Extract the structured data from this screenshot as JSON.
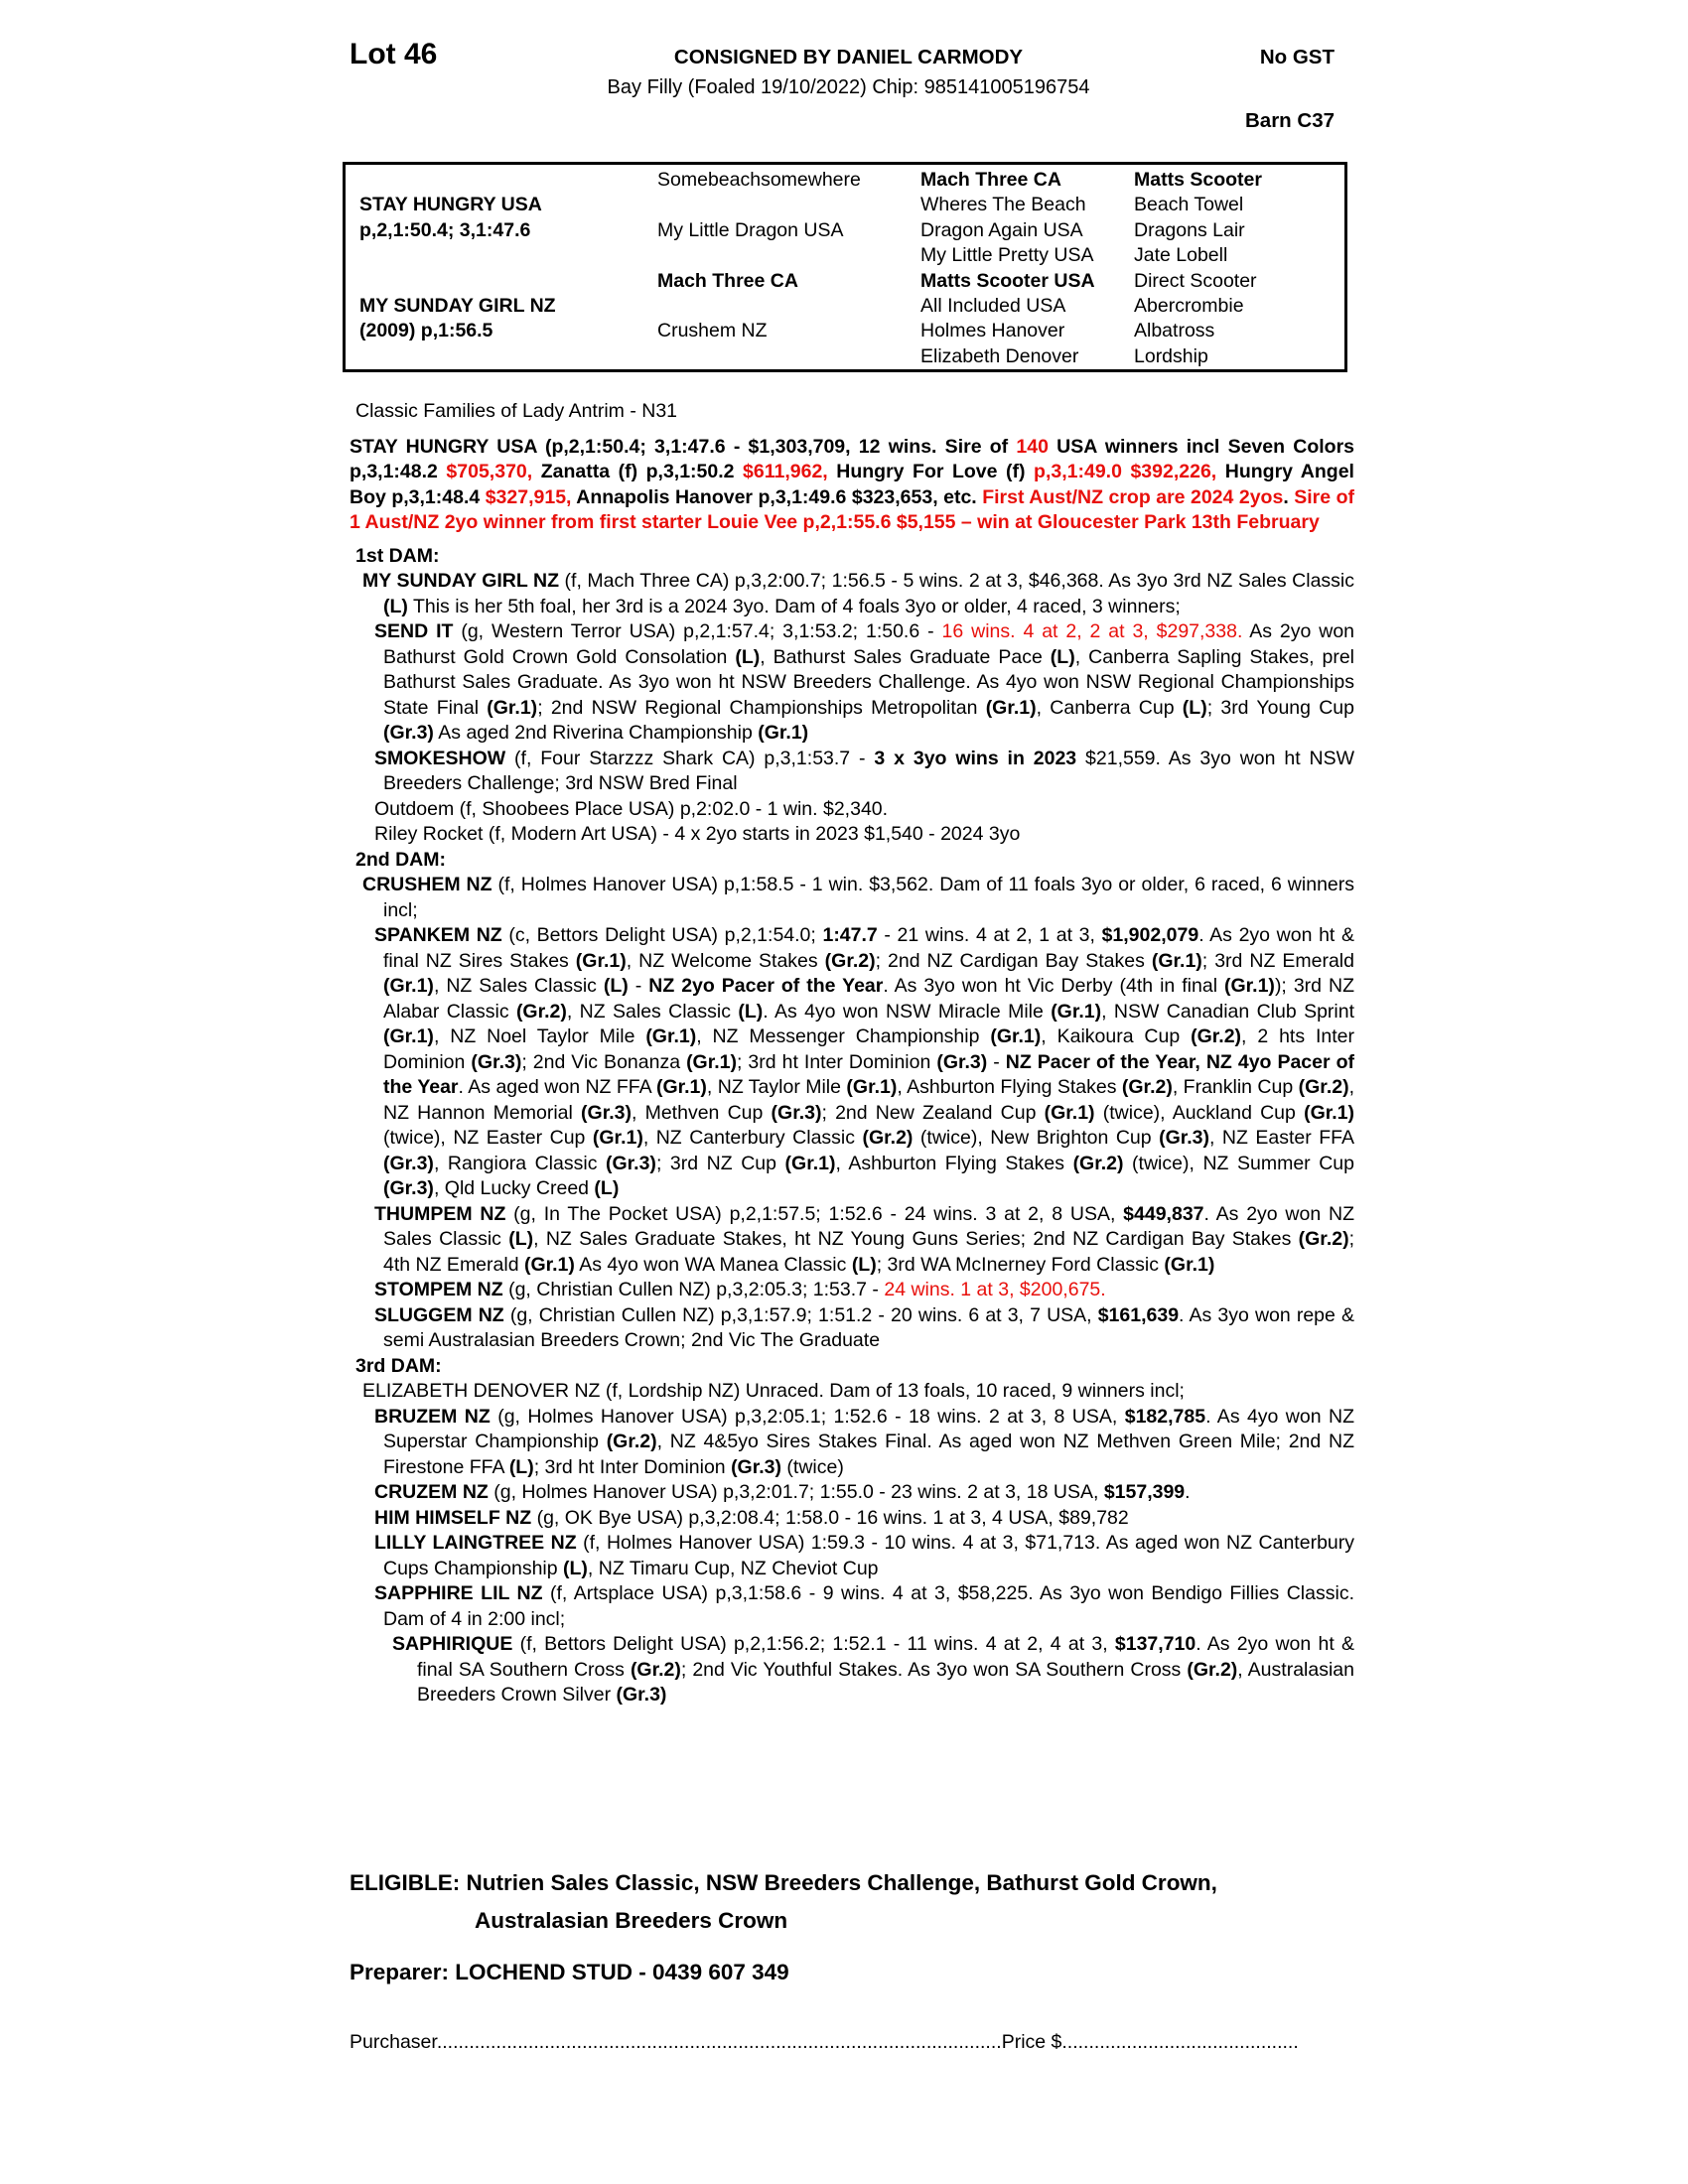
{
  "header": {
    "lot": "Lot 46",
    "consigned": "CONSIGNED BY DANIEL CARMODY",
    "no_gst": "No GST",
    "description": "Bay Filly (Foaled 19/10/2022) Chip: 985141005196754",
    "barn": "Barn C37"
  },
  "pedigree_table": {
    "columns": [
      {
        "rows": [
          {
            "t": ""
          },
          {
            "t": "STAY HUNGRY USA",
            "b": true
          },
          {
            "t": "p,2,1:50.4; 3,1:47.6",
            "b": true
          },
          {
            "t": ""
          },
          {
            "t": ""
          },
          {
            "t": "MY SUNDAY GIRL NZ",
            "b": true
          },
          {
            "t": "(2009) p,1:56.5",
            "b": true
          },
          {
            "t": ""
          }
        ]
      },
      {
        "rows": [
          {
            "t": "Somebeachsomewhere"
          },
          {
            "t": ""
          },
          {
            "t": "My Little Dragon USA"
          },
          {
            "t": ""
          },
          {
            "t": "Mach Three CA",
            "b": true
          },
          {
            "t": ""
          },
          {
            "t": "Crushem NZ"
          },
          {
            "t": ""
          }
        ]
      },
      {
        "rows": [
          {
            "t": "Mach Three CA",
            "b": true
          },
          {
            "t": "Wheres The Beach"
          },
          {
            "t": "Dragon Again USA"
          },
          {
            "t": "My Little Pretty USA"
          },
          {
            "t": "Matts Scooter USA",
            "b": true
          },
          {
            "t": "All Included USA"
          },
          {
            "t": "Holmes Hanover"
          },
          {
            "t": "Elizabeth Denover"
          }
        ]
      },
      {
        "rows": [
          {
            "t": "Matts Scooter",
            "b": true
          },
          {
            "t": "Beach Towel"
          },
          {
            "t": "Dragons Lair"
          },
          {
            "t": "Jate Lobell"
          },
          {
            "t": "Direct Scooter"
          },
          {
            "t": "Abercrombie"
          },
          {
            "t": "Albatross"
          },
          {
            "t": "Lordship"
          }
        ]
      }
    ]
  },
  "family_line": "Classic Families of Lady Antrim - N31",
  "sire_paragraph": {
    "runs": [
      {
        "t": "STAY HUNGRY USA (p,2,1:50.4; 3,1:47.6 - $1,303,709, 12 wins. Sire of ",
        "b": true
      },
      {
        "t": "140",
        "b": true,
        "r": true
      },
      {
        "t": " USA winners incl Seven Colors p,3,1:48.2 ",
        "b": true
      },
      {
        "t": "$705,370,",
        "b": true,
        "r": true
      },
      {
        "t": " Zanatta (f) p,3,1:50.2 ",
        "b": true
      },
      {
        "t": "$611,962,",
        "b": true,
        "r": true
      },
      {
        "t": " Hungry For Love (f) ",
        "b": true
      },
      {
        "t": "p,3,1:49.0 $392,226,",
        "b": true,
        "r": true
      },
      {
        "t": " Hungry Angel Boy p,3,1:48.4 ",
        "b": true
      },
      {
        "t": "$327,915,",
        "b": true,
        "r": true
      },
      {
        "t": " Annapolis Hanover p,3,1:49.6 $323,653, etc. ",
        "b": true
      },
      {
        "t": "First Aust/NZ crop are 2024 2yos",
        "b": true,
        "r": true
      },
      {
        "t": ". ",
        "b": true
      },
      {
        "t": "Sire of 1 Aust/NZ 2yo winner from first starter Louie Vee p,2,1:55.6 $5,155 – win at Gloucester Park 13th February",
        "b": true,
        "r": true
      }
    ]
  },
  "sections": [
    {
      "heading": "1st DAM:",
      "entries": [
        {
          "level": 1,
          "runs": [
            {
              "t": "MY SUNDAY GIRL NZ",
              "b": true
            },
            {
              "t": " (f, Mach Three CA) p,3,2:00.7; 1:56.5 - 5 wins. 2 at 3, $46,368. As 3yo 3rd NZ Sales Classic "
            },
            {
              "t": "(L)",
              "b": true
            },
            {
              "t": " This is her 5th foal, her 3rd is a 2024 3yo. Dam of 4 foals 3yo or older, 4 raced, 3 winners;"
            }
          ]
        },
        {
          "level": 2,
          "runs": [
            {
              "t": "SEND IT",
              "b": true
            },
            {
              "t": " (g, Western Terror USA) p,2,1:57.4; 3,1:53.2; 1:50.6 - "
            },
            {
              "t": "16 wins. 4 at 2, 2 at 3, $297,338.",
              "r": true
            },
            {
              "t": " As 2yo won Bathurst Gold Crown Gold Consolation "
            },
            {
              "t": "(L)",
              "b": true
            },
            {
              "t": ", Bathurst Sales Graduate Pace "
            },
            {
              "t": "(L)",
              "b": true
            },
            {
              "t": ", Canberra Sapling Stakes, prel Bathurst Sales Graduate. As 3yo won ht NSW Breeders Challenge. As 4yo won NSW Regional Championships State Final "
            },
            {
              "t": "(Gr.1)",
              "b": true
            },
            {
              "t": "; 2nd NSW Regional Championships Metropolitan "
            },
            {
              "t": "(Gr.1)",
              "b": true
            },
            {
              "t": ", Canberra Cup "
            },
            {
              "t": "(L)",
              "b": true
            },
            {
              "t": "; 3rd Young Cup "
            },
            {
              "t": "(Gr.3)",
              "b": true
            },
            {
              "t": " As aged 2nd Riverina Championship "
            },
            {
              "t": "(Gr.1)",
              "b": true
            }
          ]
        },
        {
          "level": 2,
          "runs": [
            {
              "t": "SMOKESHOW",
              "b": true
            },
            {
              "t": " (f, Four Starzzz Shark CA) p,3,1:53.7 - "
            },
            {
              "t": "3 x 3yo wins in 2023",
              "b": true
            },
            {
              "t": " $21,559. As 3yo won ht NSW Breeders Challenge; 3rd NSW Bred Final"
            }
          ]
        },
        {
          "level": 2,
          "runs": [
            {
              "t": "Outdoem (f, Shoobees Place USA) p,2:02.0 - 1 win. $2,340."
            }
          ]
        },
        {
          "level": 2,
          "runs": [
            {
              "t": "Riley Rocket (f, Modern Art USA) - 4 x 2yo starts in 2023 $1,540 - 2024 3yo"
            }
          ]
        }
      ]
    },
    {
      "heading": "2nd DAM:",
      "entries": [
        {
          "level": 1,
          "runs": [
            {
              "t": "CRUSHEM NZ",
              "b": true
            },
            {
              "t": " (f, Holmes Hanover USA) p,1:58.5 - 1 win. $3,562. Dam of 11 foals 3yo or older, 6 raced, 6 winners incl;"
            }
          ]
        },
        {
          "level": 2,
          "runs": [
            {
              "t": "SPANKEM NZ",
              "b": true
            },
            {
              "t": " (c, Bettors Delight USA) p,2,1:54.0; "
            },
            {
              "t": "1:47.7",
              "b": true
            },
            {
              "t": " - 21 wins. 4 at 2, 1 at 3, "
            },
            {
              "t": "$1,902,079",
              "b": true
            },
            {
              "t": ". As 2yo won ht & final NZ Sires Stakes "
            },
            {
              "t": "(Gr.1)",
              "b": true
            },
            {
              "t": ", NZ Welcome Stakes "
            },
            {
              "t": "(Gr.2)",
              "b": true
            },
            {
              "t": "; 2nd NZ Cardigan Bay Stakes "
            },
            {
              "t": "(Gr.1)",
              "b": true
            },
            {
              "t": "; 3rd NZ Emerald "
            },
            {
              "t": "(Gr.1)",
              "b": true
            },
            {
              "t": ", NZ Sales Classic "
            },
            {
              "t": "(L)",
              "b": true
            },
            {
              "t": " - "
            },
            {
              "t": "NZ 2yo Pacer of the Year",
              "b": true
            },
            {
              "t": ". As 3yo won ht Vic Derby (4th in final "
            },
            {
              "t": "(Gr.1)",
              "b": true
            },
            {
              "t": "); 3rd NZ Alabar Classic "
            },
            {
              "t": "(Gr.2)",
              "b": true
            },
            {
              "t": ", NZ Sales Classic "
            },
            {
              "t": "(L)",
              "b": true
            },
            {
              "t": ". As 4yo won NSW Miracle Mile "
            },
            {
              "t": "(Gr.1)",
              "b": true
            },
            {
              "t": ", NSW Canadian Club Sprint "
            },
            {
              "t": "(Gr.1)",
              "b": true
            },
            {
              "t": ", NZ Noel Taylor Mile "
            },
            {
              "t": "(Gr.1)",
              "b": true
            },
            {
              "t": ", NZ Messenger Championship "
            },
            {
              "t": "(Gr.1)",
              "b": true
            },
            {
              "t": ", Kaikoura Cup "
            },
            {
              "t": "(Gr.2)",
              "b": true
            },
            {
              "t": ", 2 hts Inter Dominion "
            },
            {
              "t": "(Gr.3)",
              "b": true
            },
            {
              "t": "; 2nd Vic Bonanza "
            },
            {
              "t": "(Gr.1)",
              "b": true
            },
            {
              "t": "; 3rd ht Inter Dominion "
            },
            {
              "t": "(Gr.3)",
              "b": true
            },
            {
              "t": " - "
            },
            {
              "t": "NZ Pacer of the Year, NZ 4yo Pacer of the Year",
              "b": true
            },
            {
              "t": ". As aged won NZ FFA "
            },
            {
              "t": "(Gr.1)",
              "b": true
            },
            {
              "t": ", NZ Taylor Mile "
            },
            {
              "t": "(Gr.1)",
              "b": true
            },
            {
              "t": ", Ashburton Flying Stakes "
            },
            {
              "t": "(Gr.2)",
              "b": true
            },
            {
              "t": ", Franklin Cup "
            },
            {
              "t": "(Gr.2)",
              "b": true
            },
            {
              "t": ", NZ Hannon Memorial "
            },
            {
              "t": "(Gr.3)",
              "b": true
            },
            {
              "t": ", Methven Cup "
            },
            {
              "t": "(Gr.3)",
              "b": true
            },
            {
              "t": "; 2nd New Zealand Cup "
            },
            {
              "t": "(Gr.1)",
              "b": true
            },
            {
              "t": " (twice), Auckland Cup "
            },
            {
              "t": "(Gr.1)",
              "b": true
            },
            {
              "t": " (twice), NZ Easter Cup "
            },
            {
              "t": "(Gr.1)",
              "b": true
            },
            {
              "t": ", NZ Canterbury Classic "
            },
            {
              "t": "(Gr.2)",
              "b": true
            },
            {
              "t": " (twice), New Brighton Cup "
            },
            {
              "t": "(Gr.3)",
              "b": true
            },
            {
              "t": ", NZ Easter FFA "
            },
            {
              "t": "(Gr.3)",
              "b": true
            },
            {
              "t": ", Rangiora Classic "
            },
            {
              "t": "(Gr.3)",
              "b": true
            },
            {
              "t": "; 3rd NZ Cup "
            },
            {
              "t": "(Gr.1)",
              "b": true
            },
            {
              "t": ", Ashburton Flying Stakes "
            },
            {
              "t": "(Gr.2)",
              "b": true
            },
            {
              "t": " (twice), NZ Summer Cup "
            },
            {
              "t": "(Gr.3)",
              "b": true
            },
            {
              "t": ", Qld Lucky Creed "
            },
            {
              "t": "(L)",
              "b": true
            }
          ]
        },
        {
          "level": 2,
          "runs": [
            {
              "t": "THUMPEM NZ",
              "b": true
            },
            {
              "t": " (g, In The Pocket USA) p,2,1:57.5; 1:52.6 - 24 wins. 3 at 2, 8 USA, "
            },
            {
              "t": "$449,837",
              "b": true
            },
            {
              "t": ". As 2yo won NZ Sales Classic "
            },
            {
              "t": "(L)",
              "b": true
            },
            {
              "t": ", NZ Sales Graduate Stakes, ht NZ Young Guns Series; 2nd NZ Cardigan Bay Stakes "
            },
            {
              "t": "(Gr.2)",
              "b": true
            },
            {
              "t": "; 4th NZ Emerald "
            },
            {
              "t": "(Gr.1)",
              "b": true
            },
            {
              "t": " As 4yo won WA Manea Classic "
            },
            {
              "t": "(L)",
              "b": true
            },
            {
              "t": "; 3rd WA McInerney Ford Classic "
            },
            {
              "t": "(Gr.1)",
              "b": true
            }
          ]
        },
        {
          "level": 2,
          "runs": [
            {
              "t": "STOMPEM NZ",
              "b": true
            },
            {
              "t": " (g, Christian Cullen NZ) p,3,2:05.3; 1:53.7 - "
            },
            {
              "t": "24 wins. 1 at 3, $200,675.",
              "r": true
            }
          ]
        },
        {
          "level": 2,
          "runs": [
            {
              "t": "SLUGGEM NZ",
              "b": true
            },
            {
              "t": " (g, Christian Cullen NZ) p,3,1:57.9; 1:51.2 - 20 wins. 6 at 3, 7 USA, "
            },
            {
              "t": "$161,639",
              "b": true
            },
            {
              "t": ". As 3yo won repe & semi Australasian Breeders Crown; 2nd Vic The Graduate"
            }
          ]
        }
      ]
    },
    {
      "heading": "3rd DAM:",
      "entries": [
        {
          "level": 1,
          "runs": [
            {
              "t": "ELIZABETH DENOVER NZ (f, Lordship NZ) Unraced. Dam of 13 foals, 10 raced, 9 winners incl;"
            }
          ]
        },
        {
          "level": 2,
          "runs": [
            {
              "t": "BRUZEM NZ",
              "b": true
            },
            {
              "t": " (g, Holmes Hanover USA) p,3,2:05.1; 1:52.6 - 18 wins. 2 at 3, 8 USA, "
            },
            {
              "t": "$182,785",
              "b": true
            },
            {
              "t": ". As 4yo won NZ Superstar Championship "
            },
            {
              "t": "(Gr.2)",
              "b": true
            },
            {
              "t": ", NZ 4&5yo Sires Stakes Final. As aged won NZ Methven Green Mile; 2nd NZ Firestone FFA "
            },
            {
              "t": "(L)",
              "b": true
            },
            {
              "t": "; 3rd ht Inter Dominion "
            },
            {
              "t": "(Gr.3)",
              "b": true
            },
            {
              "t": " (twice)"
            }
          ]
        },
        {
          "level": 2,
          "runs": [
            {
              "t": "CRUZEM NZ",
              "b": true
            },
            {
              "t": " (g, Holmes Hanover USA) p,3,2:01.7; 1:55.0 - 23 wins. 2 at 3, 18 USA, "
            },
            {
              "t": "$157,399",
              "b": true
            },
            {
              "t": "."
            }
          ]
        },
        {
          "level": 2,
          "runs": [
            {
              "t": "HIM HIMSELF NZ",
              "b": true
            },
            {
              "t": " (g, OK Bye USA) p,3,2:08.4; 1:58.0 - 16 wins. 1 at 3, 4 USA, $89,782"
            }
          ]
        },
        {
          "level": 2,
          "runs": [
            {
              "t": "LILLY LAINGTREE NZ",
              "b": true
            },
            {
              "t": " (f, Holmes Hanover USA) 1:59.3 - 10 wins. 4 at 3, $71,713. As aged won NZ Canterbury Cups Championship "
            },
            {
              "t": "(L)",
              "b": true
            },
            {
              "t": ", NZ Timaru Cup, NZ Cheviot Cup"
            }
          ]
        },
        {
          "level": 2,
          "runs": [
            {
              "t": "SAPPHIRE LIL NZ",
              "b": true
            },
            {
              "t": " (f, Artsplace USA) p,3,1:58.6 - 9 wins. 4 at 3, $58,225. As 3yo won Bendigo Fillies Classic. Dam of 4 in 2:00 incl;"
            }
          ]
        },
        {
          "level": 3,
          "runs": [
            {
              "t": "SAPHIRIQUE",
              "b": true
            },
            {
              "t": " (f, Bettors Delight USA) p,2,1:56.2; 1:52.1 - 11 wins. 4 at 2, 4 at 3, "
            },
            {
              "t": "$137,710",
              "b": true
            },
            {
              "t": ". As 2yo won ht & final SA Southern Cross "
            },
            {
              "t": "(Gr.2)",
              "b": true
            },
            {
              "t": "; 2nd Vic Youthful Stakes. As 3yo won SA Southern Cross "
            },
            {
              "t": "(Gr.2)",
              "b": true
            },
            {
              "t": ", Australasian Breeders Crown Silver "
            },
            {
              "t": "(Gr.3)",
              "b": true
            }
          ]
        }
      ]
    }
  ],
  "eligible": {
    "line1": "ELIGIBLE: Nutrien Sales Classic, NSW Breeders Challenge, Bathurst Gold Crown,",
    "line2": "Australasian Breeders Crown"
  },
  "preparer": "Preparer: LOCHEND STUD - 0439 607 349",
  "purchase": {
    "purchaser_label": "Purchaser",
    "leader1": ".........................................................................................................",
    "price_label": "Price $",
    "leader2": "............................................"
  },
  "colors": {
    "accent_red": "#e8100c",
    "text": "#000000",
    "background": "#ffffff"
  }
}
